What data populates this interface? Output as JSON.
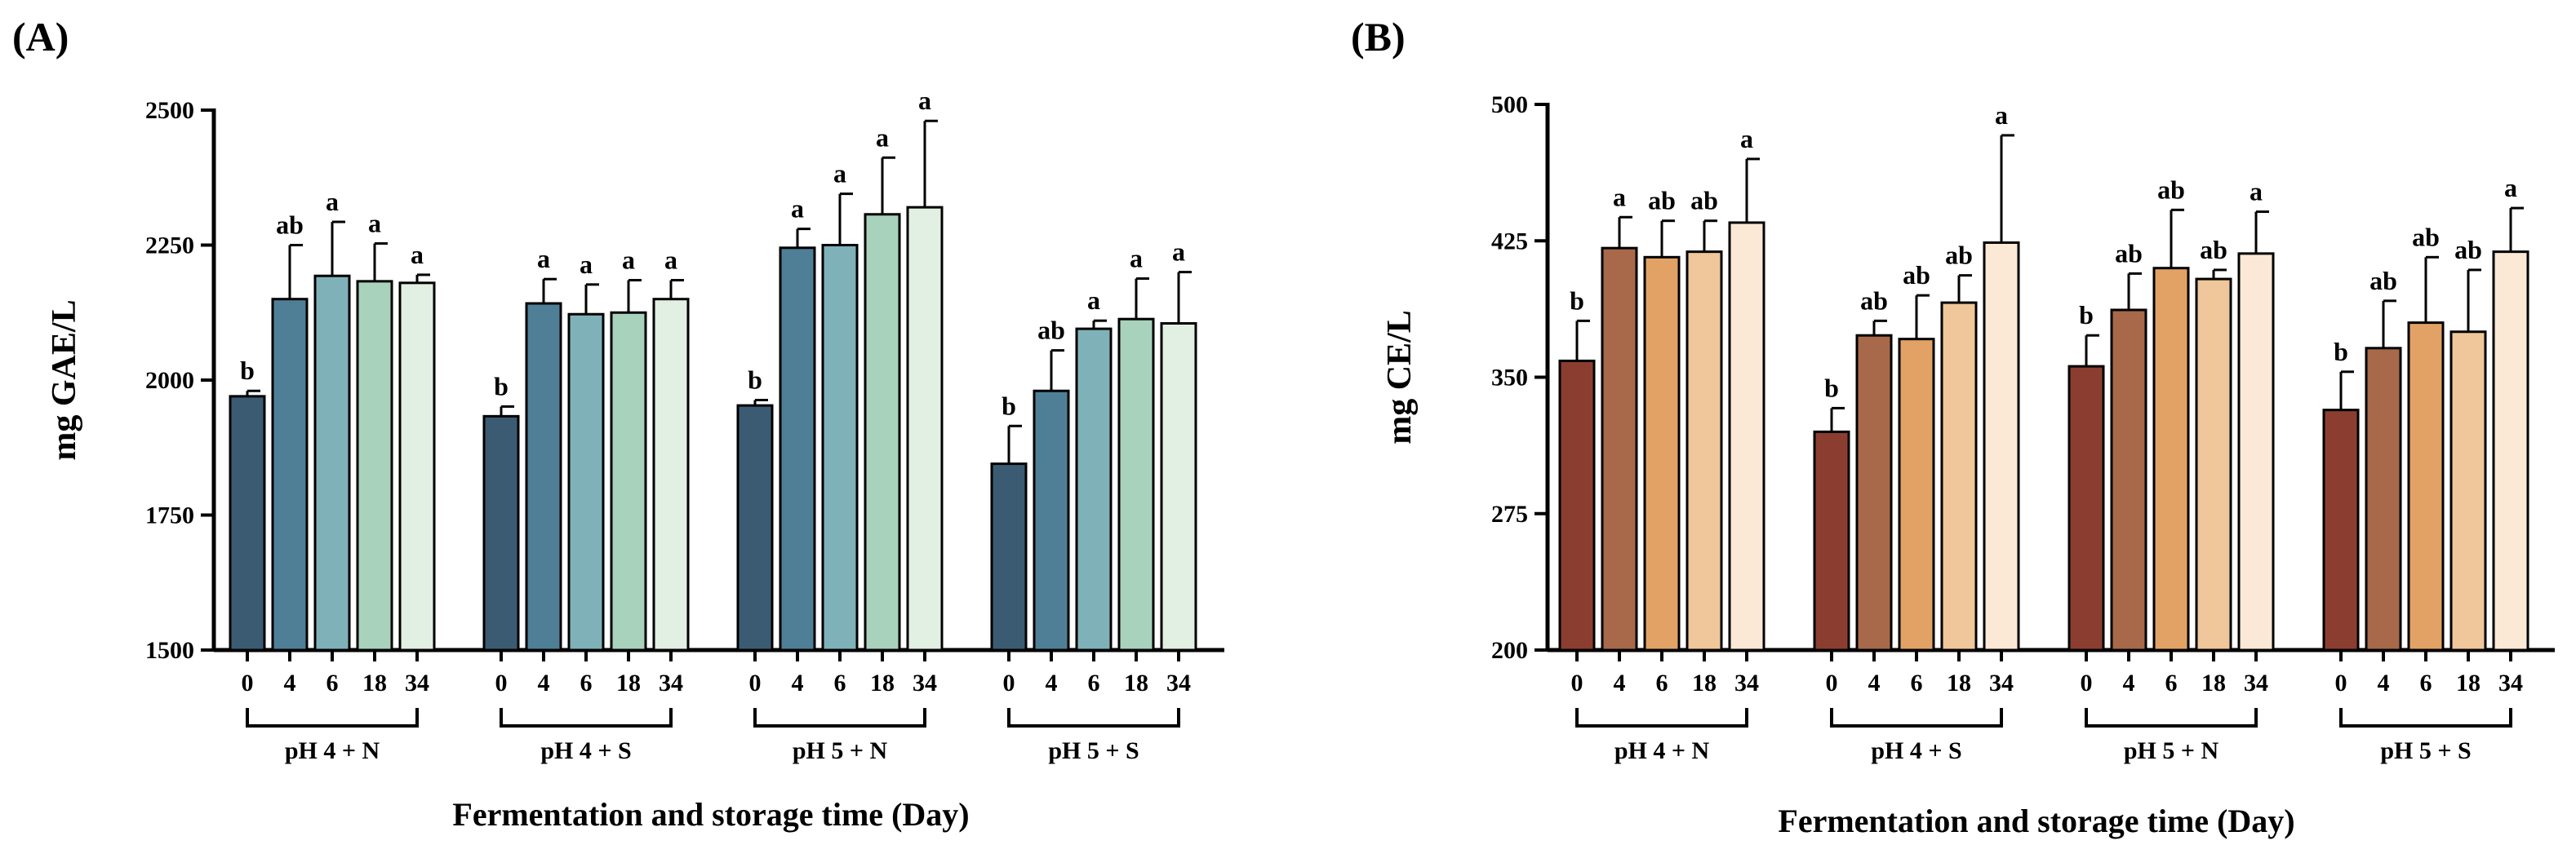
{
  "chart_data": [
    {
      "type": "bar",
      "panel_label": "(A)",
      "ylabel": "mg GAE/L",
      "xlabel": "Fermentation and storage time (Day)",
      "ylim": [
        1500,
        2500
      ],
      "yticks": [
        1500,
        1750,
        2000,
        2250,
        2500
      ],
      "grid": false,
      "groups": [
        {
          "name": "pH 4 + N",
          "days": [
            "0",
            "4",
            "6",
            "18",
            "34"
          ],
          "values": [
            1970,
            2150,
            2193,
            2183,
            2180
          ],
          "errors": [
            10,
            100,
            100,
            70,
            15
          ],
          "letters": [
            "b",
            "ab",
            "a",
            "a",
            "a"
          ]
        },
        {
          "name": "pH 4 + S",
          "days": [
            "0",
            "4",
            "6",
            "18",
            "34"
          ],
          "values": [
            1933,
            2142,
            2122,
            2125,
            2150
          ],
          "errors": [
            18,
            45,
            55,
            60,
            35
          ],
          "letters": [
            "b",
            "a",
            "a",
            "a",
            "a"
          ]
        },
        {
          "name": "pH 5 + N",
          "days": [
            "0",
            "4",
            "6",
            "18",
            "34"
          ],
          "values": [
            1953,
            2245,
            2250,
            2307,
            2320
          ],
          "errors": [
            10,
            35,
            95,
            105,
            160
          ],
          "letters": [
            "b",
            "a",
            "a",
            "a",
            "a"
          ]
        },
        {
          "name": "pH 5 + S",
          "days": [
            "0",
            "4",
            "6",
            "18",
            "34"
          ],
          "values": [
            1845,
            1980,
            2095,
            2113,
            2105
          ],
          "errors": [
            70,
            75,
            15,
            75,
            95
          ],
          "letters": [
            "b",
            "ab",
            "a",
            "a",
            "a"
          ]
        }
      ],
      "colors": [
        "#3b5b73",
        "#4f7f96",
        "#7fb2b8",
        "#a9d2bd",
        "#e2f0e3"
      ]
    },
    {
      "type": "bar",
      "panel_label": "(B)",
      "ylabel": "mg CE/L",
      "xlabel": "Fermentation and storage time (Day)",
      "ylim": [
        200,
        500
      ],
      "yticks": [
        200,
        275,
        350,
        425,
        500
      ],
      "grid": false,
      "groups": [
        {
          "name": "pH 4 + N",
          "days": [
            "0",
            "4",
            "6",
            "18",
            "34"
          ],
          "values": [
            359,
            421,
            416,
            419,
            435
          ],
          "errors": [
            22,
            17,
            20,
            17,
            35
          ],
          "letters": [
            "b",
            "a",
            "ab",
            "ab",
            "a"
          ]
        },
        {
          "name": "pH 4 + S",
          "days": [
            "0",
            "4",
            "6",
            "18",
            "34"
          ],
          "values": [
            320,
            373,
            371,
            391,
            424
          ],
          "errors": [
            13,
            8,
            24,
            15,
            59
          ],
          "letters": [
            "b",
            "ab",
            "ab",
            "ab",
            "a"
          ]
        },
        {
          "name": "pH 5 + N",
          "days": [
            "0",
            "4",
            "6",
            "18",
            "34"
          ],
          "values": [
            356,
            387,
            410,
            404,
            418
          ],
          "errors": [
            17,
            20,
            32,
            5,
            23
          ],
          "letters": [
            "b",
            "ab",
            "ab",
            "ab",
            "a"
          ]
        },
        {
          "name": "pH 5 + S",
          "days": [
            "0",
            "4",
            "6",
            "18",
            "34"
          ],
          "values": [
            332,
            366,
            380,
            375,
            419
          ],
          "errors": [
            21,
            26,
            36,
            34,
            24
          ],
          "letters": [
            "b",
            "ab",
            "ab",
            "ab",
            "a"
          ]
        }
      ],
      "colors": [
        "#8b3e2f",
        "#a8694a",
        "#e2a265",
        "#efc79a",
        "#fbe9d6"
      ]
    }
  ]
}
